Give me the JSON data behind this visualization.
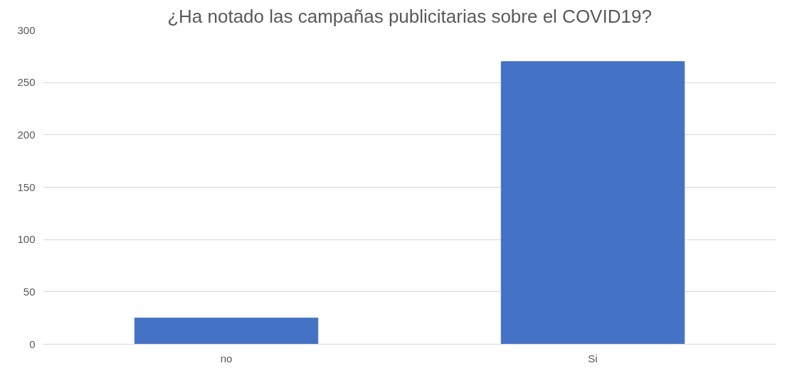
{
  "chart_data": {
    "type": "bar",
    "title": "¿Ha notado las campañas publicitarias sobre el COVID19?",
    "categories": [
      "no",
      "Si"
    ],
    "values": [
      25,
      270
    ],
    "color": "#4472c4",
    "ylim": [
      0,
      300
    ],
    "yticks": [
      0,
      50,
      100,
      150,
      200,
      250,
      300
    ],
    "grid": "y"
  }
}
